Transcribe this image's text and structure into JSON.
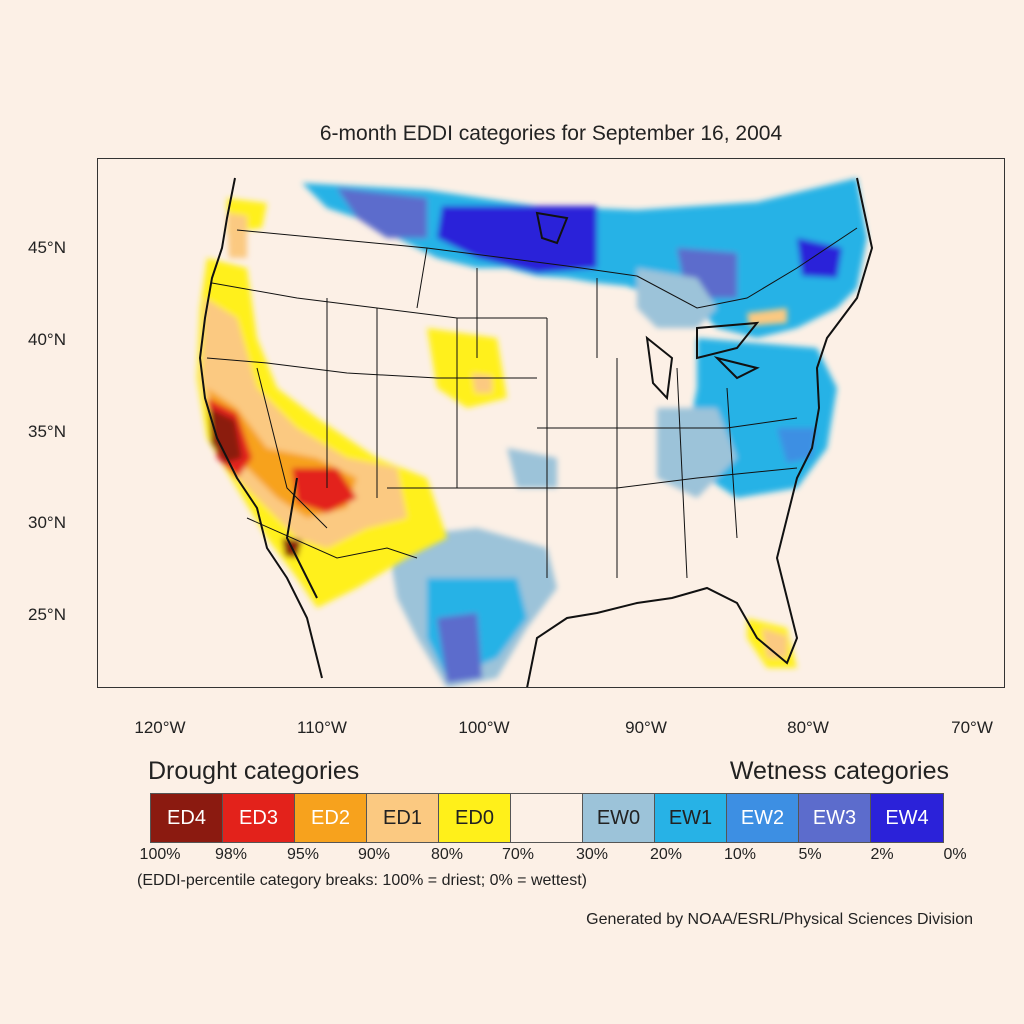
{
  "title": "6-month EDDI categories for September 16, 2004",
  "map": {
    "lat_labels": [
      "45°N",
      "40°N",
      "35°N",
      "30°N",
      "25°N"
    ],
    "lon_labels": [
      "120°W",
      "110°W",
      "100°W",
      "90°W",
      "80°W",
      "70°W"
    ]
  },
  "legend": {
    "drought_title": "Drought categories",
    "wetness_title": "Wetness categories",
    "categories": [
      {
        "label": "ED4",
        "color": "#8b1a10",
        "text_color": "#ffffff"
      },
      {
        "label": "ED3",
        "color": "#e3221b",
        "text_color": "#ffffff"
      },
      {
        "label": "ED2",
        "color": "#f7a21d",
        "text_color": "#ffffff"
      },
      {
        "label": "ED1",
        "color": "#fbc981",
        "text_color": "#222222"
      },
      {
        "label": "ED0",
        "color": "#fff01a",
        "text_color": "#222222"
      },
      {
        "label": "",
        "color": "#fcf0e6",
        "text_color": "#222222"
      },
      {
        "label": "EW0",
        "color": "#9cc3d9",
        "text_color": "#222222"
      },
      {
        "label": "EW1",
        "color": "#27b2e6",
        "text_color": "#222222"
      },
      {
        "label": "EW2",
        "color": "#3d8fe3",
        "text_color": "#ffffff"
      },
      {
        "label": "EW3",
        "color": "#5c6ccc",
        "text_color": "#ffffff"
      },
      {
        "label": "EW4",
        "color": "#2b22d9",
        "text_color": "#ffffff"
      }
    ],
    "breaks": [
      "100%",
      "98%",
      "95%",
      "90%",
      "80%",
      "70%",
      "30%",
      "20%",
      "10%",
      "5%",
      "2%",
      "0%"
    ],
    "note": "(EDDI-percentile category breaks: 100% = driest; 0% = wettest)"
  },
  "credit": "Generated by NOAA/ESRL/Physical Sciences Division"
}
